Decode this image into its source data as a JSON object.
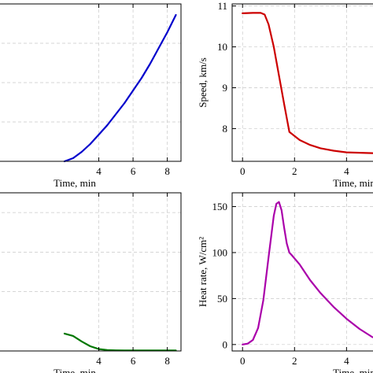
{
  "chart_data": [
    {
      "type": "line",
      "xlabel": "Time, min",
      "ylabel": "",
      "xlim": [
        -2.0,
        8.8
      ],
      "ylim": [
        0,
        1
      ],
      "xticks": [
        4,
        6,
        8
      ],
      "yticks": [],
      "ygrid": [
        0.25,
        0.5,
        0.75
      ],
      "grid": true,
      "color": "#0000cc",
      "series": [
        {
          "x": [
            2.0,
            2.5,
            3.0,
            3.5,
            4.0,
            4.5,
            5.0,
            5.5,
            6.0,
            6.5,
            7.0,
            7.5,
            8.0,
            8.5
          ],
          "y": [
            0.0,
            0.02,
            0.06,
            0.11,
            0.17,
            0.23,
            0.3,
            0.37,
            0.45,
            0.53,
            0.62,
            0.72,
            0.82,
            0.93
          ]
        }
      ]
    },
    {
      "type": "line",
      "xlabel": "Time, min",
      "ylabel": "Speed, km/s",
      "xlim": [
        -0.4,
        5.2
      ],
      "ylim": [
        7.2,
        11.05
      ],
      "xticks": [
        0,
        2,
        4
      ],
      "yticks": [
        8,
        9,
        10,
        11
      ],
      "grid": true,
      "color": "#cc0000",
      "series": [
        {
          "x": [
            0.0,
            0.4,
            0.7,
            0.85,
            1.0,
            1.2,
            1.4,
            1.6,
            1.8,
            2.2,
            2.6,
            3.0,
            3.5,
            4.0,
            4.5,
            5.0
          ],
          "y": [
            10.82,
            10.83,
            10.83,
            10.79,
            10.55,
            10.0,
            9.3,
            8.6,
            7.92,
            7.72,
            7.6,
            7.52,
            7.46,
            7.42,
            7.41,
            7.4
          ]
        }
      ]
    },
    {
      "type": "line",
      "xlabel": "Time, min",
      "ylabel": "",
      "xlim": [
        -2.0,
        8.8
      ],
      "ylim": [
        0,
        1
      ],
      "xticks": [
        4,
        6,
        8
      ],
      "yticks": [],
      "ygrid": [
        0.375,
        0.625,
        0.875
      ],
      "grid": true,
      "color": "#007700",
      "series": [
        {
          "x": [
            2.0,
            2.5,
            3.0,
            3.5,
            4.0,
            4.5,
            5.0,
            5.5,
            6.0,
            7.0,
            8.0,
            8.5
          ],
          "y": [
            0.11,
            0.095,
            0.06,
            0.03,
            0.012,
            0.006,
            0.004,
            0.003,
            0.003,
            0.003,
            0.003,
            0.003
          ]
        }
      ]
    },
    {
      "type": "line",
      "xlabel": "Time, min",
      "ylabel": "Heat rate, W/cm²",
      "xlim": [
        -0.4,
        5.2
      ],
      "ylim": [
        -7,
        165
      ],
      "xticks": [
        0,
        2,
        4
      ],
      "yticks": [
        0,
        50,
        100,
        150
      ],
      "grid": true,
      "color": "#aa00aa",
      "series": [
        {
          "x": [
            0.0,
            0.2,
            0.4,
            0.6,
            0.8,
            1.0,
            1.2,
            1.3,
            1.4,
            1.5,
            1.6,
            1.7,
            1.8,
            1.9,
            2.2,
            2.6,
            3.0,
            3.5,
            4.0,
            4.5,
            5.0
          ],
          "y": [
            0,
            1,
            5,
            18,
            48,
            95,
            140,
            153,
            155,
            146,
            127,
            110,
            100,
            97,
            87,
            70,
            56,
            41,
            28,
            17,
            8
          ]
        }
      ]
    }
  ]
}
